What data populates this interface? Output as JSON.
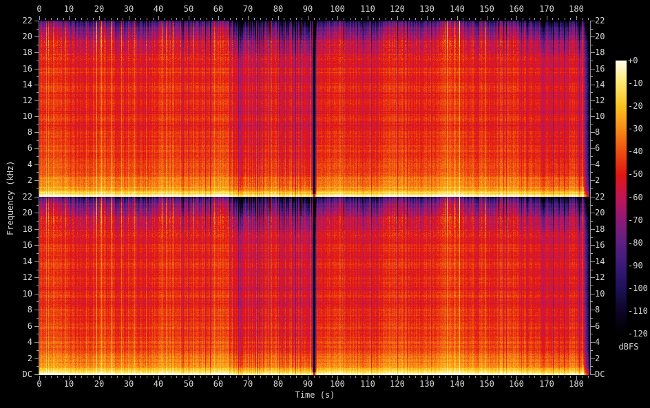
{
  "app": {
    "background": "#000000",
    "text_color": "#d9d9d9",
    "tick_color": "#9f9f9f"
  },
  "axes": {
    "time": {
      "label": "Time (s)",
      "range_s": [
        0,
        184.4
      ],
      "minor_step_s": 2,
      "major_ticks": [
        {
          "t": 0,
          "label": "0"
        },
        {
          "t": 10,
          "label": "10"
        },
        {
          "t": 20,
          "label": "20"
        },
        {
          "t": 30,
          "label": "30"
        },
        {
          "t": 40,
          "label": "40"
        },
        {
          "t": 50,
          "label": "50"
        },
        {
          "t": 60,
          "label": "60"
        },
        {
          "t": 70,
          "label": "70"
        },
        {
          "t": 80,
          "label": "80"
        },
        {
          "t": 90,
          "label": "90"
        },
        {
          "t": 100,
          "label": "100"
        },
        {
          "t": 110,
          "label": "110"
        },
        {
          "t": 120,
          "label": "120"
        },
        {
          "t": 130,
          "label": "130"
        },
        {
          "t": 140,
          "label": "140"
        },
        {
          "t": 150,
          "label": "150"
        },
        {
          "t": 160,
          "label": "160"
        },
        {
          "t": 170,
          "label": "170"
        },
        {
          "t": 180,
          "label": "180"
        }
      ]
    },
    "frequency": {
      "label": "Frequency (kHz)",
      "range_khz": [
        0,
        22
      ],
      "minor_step_khz": 1,
      "dc_label": "DC",
      "major_ticks": [
        {
          "khz": 22,
          "label": "22"
        },
        {
          "khz": 20,
          "label": "20"
        },
        {
          "khz": 18,
          "label": "18"
        },
        {
          "khz": 16,
          "label": "16"
        },
        {
          "khz": 14,
          "label": "14"
        },
        {
          "khz": 12,
          "label": "12"
        },
        {
          "khz": 10,
          "label": "10"
        },
        {
          "khz": 8,
          "label": "8"
        },
        {
          "khz": 6,
          "label": "6"
        },
        {
          "khz": 4,
          "label": "4"
        },
        {
          "khz": 2,
          "label": "2"
        }
      ]
    }
  },
  "colorbar": {
    "title": "dBFS",
    "range_db": [
      -120,
      0
    ],
    "ticks": [
      {
        "db": 0,
        "label": "+0"
      },
      {
        "db": -10,
        "label": "-10"
      },
      {
        "db": -20,
        "label": "-20"
      },
      {
        "db": -30,
        "label": "-30"
      },
      {
        "db": -40,
        "label": "-40"
      },
      {
        "db": -50,
        "label": "-50"
      },
      {
        "db": -60,
        "label": "-60"
      },
      {
        "db": -70,
        "label": "-70"
      },
      {
        "db": -80,
        "label": "-80"
      },
      {
        "db": -90,
        "label": "-90"
      },
      {
        "db": -100,
        "label": "-100"
      },
      {
        "db": -110,
        "label": "-110"
      },
      {
        "db": -120,
        "label": "-120"
      }
    ]
  },
  "chart_data": {
    "type": "heatmap",
    "subtype": "audio-spectrogram",
    "channels": 2,
    "time_range_s": [
      0,
      184.4
    ],
    "freq_range_khz": [
      0,
      22
    ],
    "db_range": [
      -120,
      0
    ],
    "time_tick_values_s": [
      0,
      10,
      20,
      30,
      40,
      50,
      60,
      70,
      80,
      90,
      100,
      110,
      120,
      130,
      140,
      150,
      160,
      170,
      180
    ],
    "freq_tick_values_khz": [
      22,
      20,
      18,
      16,
      14,
      12,
      10,
      8,
      6,
      4,
      2,
      0
    ],
    "colorbar_tick_values_db": [
      0,
      -10,
      -20,
      -30,
      -40,
      -50,
      -60,
      -70,
      -80,
      -90,
      -100,
      -110,
      -120
    ],
    "features": {
      "silence_gap_s": 92.0,
      "fade_out_start_s": 181.8,
      "quiet_sections_s": [
        [
          63.5,
          90.5
        ],
        [
          168.0,
          181.8
        ]
      ],
      "loud_section_s": [
        86.0,
        91.5
      ]
    },
    "freq_level_profile_khz_db": [
      [
        0,
        -4
      ],
      [
        0.15,
        -8
      ],
      [
        0.4,
        -16
      ],
      [
        0.8,
        -24
      ],
      [
        1.5,
        -31
      ],
      [
        2.5,
        -37
      ],
      [
        4,
        -42
      ],
      [
        6,
        -45
      ],
      [
        9,
        -47
      ],
      [
        13,
        -47.5
      ],
      [
        16,
        -48.5
      ],
      [
        18,
        -51.5
      ],
      [
        19.5,
        -56
      ],
      [
        20.3,
        -63
      ],
      [
        21,
        -73
      ],
      [
        21.5,
        -83
      ],
      [
        22,
        -93
      ]
    ],
    "colormap_stops": [
      [
        0.0,
        "#000000"
      ],
      [
        0.083,
        "#0c0526"
      ],
      [
        0.167,
        "#1d1158"
      ],
      [
        0.25,
        "#391a7b"
      ],
      [
        0.333,
        "#5d2084"
      ],
      [
        0.417,
        "#8d1a78"
      ],
      [
        0.5,
        "#c21557"
      ],
      [
        0.583,
        "#e11712"
      ],
      [
        0.667,
        "#ee4e10"
      ],
      [
        0.75,
        "#f98c17"
      ],
      [
        0.833,
        "#fbc31f"
      ],
      [
        0.917,
        "#fde96c"
      ],
      [
        1.0,
        "#fffdea"
      ]
    ]
  }
}
